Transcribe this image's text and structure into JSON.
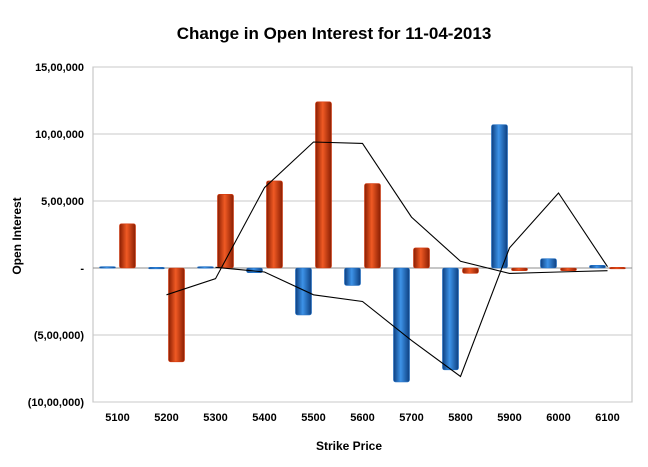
{
  "chart_data": {
    "type": "bar",
    "title": "Change in Open Interest for 11-04-2013",
    "xlabel": "Strike Price",
    "ylabel": "Open Interest",
    "categories": [
      "5100",
      "5200",
      "5300",
      "5400",
      "5500",
      "5600",
      "5700",
      "5800",
      "5900",
      "6000",
      "6100"
    ],
    "ylim": [
      -1000000,
      1500000
    ],
    "y_ticks": [
      1500000,
      1000000,
      500000,
      0,
      -500000,
      -1000000
    ],
    "y_tick_labels": [
      "15,00,000",
      "10,00,000",
      "5,00,000",
      "-",
      "(5,00,000)",
      "(10,00,000)"
    ],
    "grid": true,
    "series": [
      {
        "values": [
          10000,
          5000,
          10000,
          -35000,
          -350000,
          -130000,
          -850000,
          -760000,
          1070000,
          70000,
          20000
        ],
        "color": "#1f6fc5",
        "kind": "bar"
      },
      {
        "values": [
          330000,
          -700000,
          550000,
          650000,
          1240000,
          630000,
          150000,
          -40000,
          -20000,
          -20000,
          5000
        ],
        "color": "#d43a0f",
        "kind": "bar"
      },
      {
        "values": [
          null,
          -200000,
          -80000,
          600000,
          940000,
          930000,
          380000,
          50000,
          -40000,
          -30000,
          -20000
        ],
        "color": "#000000",
        "kind": "line"
      },
      {
        "values": [
          null,
          null,
          5000,
          -30000,
          -200000,
          -250000,
          -540000,
          -810000,
          150000,
          560000,
          10000
        ],
        "color": "#000000",
        "kind": "line"
      }
    ]
  }
}
